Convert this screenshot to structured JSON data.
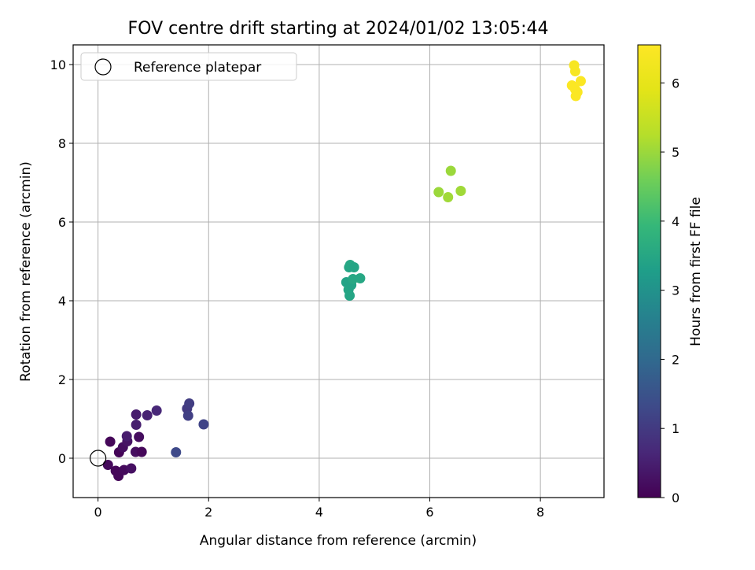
{
  "chart_data": {
    "type": "scatter",
    "title": "FOV centre drift starting at 2024/01/02 13:05:44",
    "xlabel": "Angular distance from reference (arcmin)",
    "ylabel": "Rotation from reference (arcmin)",
    "xlim": [
      -0.45,
      9.15
    ],
    "ylim": [
      -1.0,
      10.5
    ],
    "xticks": [
      0,
      2,
      4,
      6,
      8
    ],
    "yticks": [
      0,
      2,
      4,
      6,
      8,
      10
    ],
    "grid": true,
    "legend": {
      "placement": "upper-left",
      "entries": [
        "Reference platepar"
      ]
    },
    "reference_point": {
      "x": 0,
      "y": 0,
      "marker": "open-circle"
    },
    "colorbar": {
      "label": "Hours from first FF file",
      "range": [
        0,
        6.55
      ],
      "ticks": [
        0,
        1,
        2,
        3,
        4,
        5,
        6
      ],
      "colormap": "viridis"
    },
    "points": [
      {
        "x": 0.22,
        "y": 0.42,
        "h": 0.1
      },
      {
        "x": 0.18,
        "y": -0.17,
        "h": 0.15
      },
      {
        "x": 0.32,
        "y": -0.32,
        "h": 0.1
      },
      {
        "x": 0.37,
        "y": -0.45,
        "h": 0.1
      },
      {
        "x": 0.38,
        "y": 0.15,
        "h": 0.05
      },
      {
        "x": 0.45,
        "y": 0.28,
        "h": 0.2
      },
      {
        "x": 0.47,
        "y": -0.3,
        "h": 0.15
      },
      {
        "x": 0.53,
        "y": 0.43,
        "h": 0.3
      },
      {
        "x": 0.52,
        "y": 0.56,
        "h": 0.45
      },
      {
        "x": 0.6,
        "y": -0.26,
        "h": 0.25
      },
      {
        "x": 0.68,
        "y": 0.16,
        "h": 0.2
      },
      {
        "x": 0.69,
        "y": 0.85,
        "h": 0.5
      },
      {
        "x": 0.69,
        "y": 1.11,
        "h": 0.45
      },
      {
        "x": 0.74,
        "y": 0.54,
        "h": 0.2
      },
      {
        "x": 0.79,
        "y": 0.16,
        "h": 0.1
      },
      {
        "x": 0.89,
        "y": 1.09,
        "h": 0.55
      },
      {
        "x": 1.06,
        "y": 1.21,
        "h": 0.65
      },
      {
        "x": 1.41,
        "y": 0.15,
        "h": 1.3
      },
      {
        "x": 1.61,
        "y": 1.26,
        "h": 1.0
      },
      {
        "x": 1.63,
        "y": 1.08,
        "h": 1.1
      },
      {
        "x": 1.65,
        "y": 1.39,
        "h": 1.05
      },
      {
        "x": 1.91,
        "y": 0.86,
        "h": 1.2
      },
      {
        "x": 4.49,
        "y": 4.47,
        "h": 3.4
      },
      {
        "x": 4.53,
        "y": 4.28,
        "h": 3.45
      },
      {
        "x": 4.54,
        "y": 4.85,
        "h": 3.45
      },
      {
        "x": 4.55,
        "y": 4.13,
        "h": 3.45
      },
      {
        "x": 4.56,
        "y": 4.91,
        "h": 3.5
      },
      {
        "x": 4.58,
        "y": 4.4,
        "h": 3.4
      },
      {
        "x": 4.61,
        "y": 4.55,
        "h": 3.5
      },
      {
        "x": 4.63,
        "y": 4.85,
        "h": 3.45
      },
      {
        "x": 4.74,
        "y": 4.57,
        "h": 3.5
      },
      {
        "x": 6.16,
        "y": 6.76,
        "h": 5.0
      },
      {
        "x": 6.33,
        "y": 6.63,
        "h": 5.05
      },
      {
        "x": 6.38,
        "y": 7.3,
        "h": 5.0
      },
      {
        "x": 6.56,
        "y": 6.79,
        "h": 5.05
      },
      {
        "x": 8.57,
        "y": 9.47,
        "h": 6.5
      },
      {
        "x": 8.61,
        "y": 9.98,
        "h": 6.4
      },
      {
        "x": 8.63,
        "y": 9.83,
        "h": 6.4
      },
      {
        "x": 8.63,
        "y": 9.37,
        "h": 6.5
      },
      {
        "x": 8.64,
        "y": 9.2,
        "h": 6.5
      },
      {
        "x": 8.67,
        "y": 9.3,
        "h": 6.5
      },
      {
        "x": 8.73,
        "y": 9.58,
        "h": 6.5
      }
    ]
  }
}
